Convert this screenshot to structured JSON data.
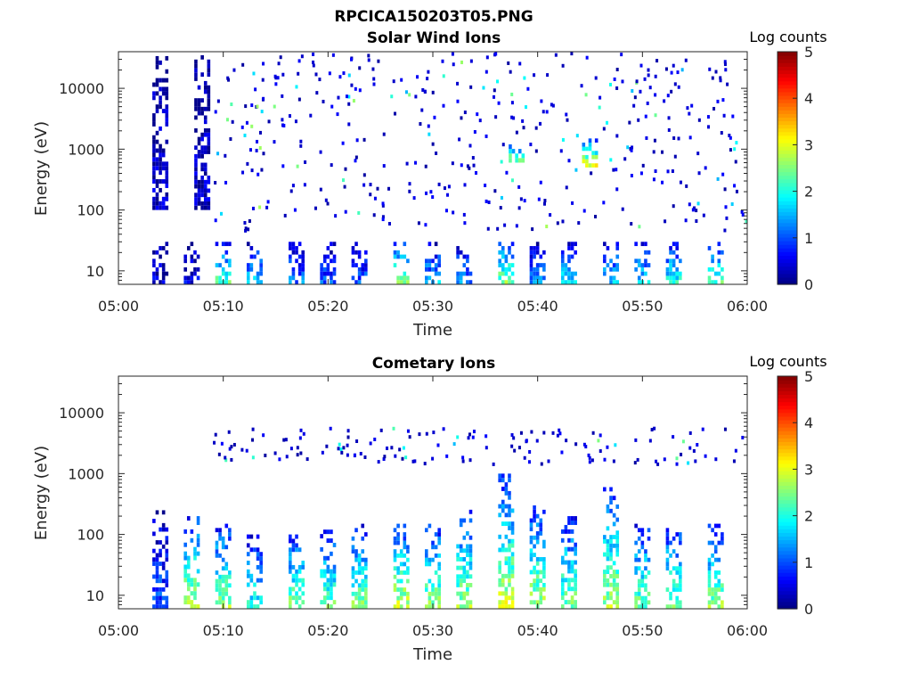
{
  "figure_title": "RPCICA150203T05.PNG",
  "chart_data": [
    {
      "type": "heatmap",
      "title": "Solar Wind Ions",
      "xlabel": "Time",
      "ylabel": "Energy (eV)",
      "x_ticks": [
        "05:00",
        "05:10",
        "05:20",
        "05:30",
        "05:40",
        "05:50",
        "06:00"
      ],
      "x_range": [
        "05:00",
        "06:00"
      ],
      "y_scale": "log",
      "y_ticks": [
        "10",
        "100",
        "1000",
        "10000"
      ],
      "y_range": [
        6,
        40000
      ],
      "colorbar": {
        "label": "Log counts",
        "ticks": [
          "0",
          "1",
          "2",
          "3",
          "4",
          "5"
        ],
        "range": [
          0,
          5
        ],
        "colormap": "jet"
      },
      "grid": false,
      "bursts": [
        {
          "t": "05:04",
          "emin": 6,
          "emax": 30,
          "level": 0.4
        },
        {
          "t": "05:04",
          "emin": 100,
          "emax": 40000,
          "level": 0.3
        },
        {
          "t": "05:07",
          "emin": 6,
          "emax": 30,
          "level": 0.6
        },
        {
          "t": "05:08",
          "emin": 100,
          "emax": 35000,
          "level": 0.3
        },
        {
          "t": "05:10",
          "emin": 6,
          "emax": 30,
          "level": 2.3
        },
        {
          "t": "05:13",
          "emin": 6,
          "emax": 30,
          "level": 1.6
        },
        {
          "t": "05:17",
          "emin": 6,
          "emax": 30,
          "level": 1.2
        },
        {
          "t": "05:20",
          "emin": 6,
          "emax": 30,
          "level": 1.0
        },
        {
          "t": "05:23",
          "emin": 6,
          "emax": 30,
          "level": 1.0
        },
        {
          "t": "05:27",
          "emin": 6,
          "emax": 30,
          "level": 2.4
        },
        {
          "t": "05:30",
          "emin": 6,
          "emax": 30,
          "level": 1.5
        },
        {
          "t": "05:33",
          "emin": 6,
          "emax": 30,
          "level": 1.3
        },
        {
          "t": "05:37",
          "emin": 6,
          "emax": 30,
          "level": 2.5
        },
        {
          "t": "05:40",
          "emin": 6,
          "emax": 30,
          "level": 1.3
        },
        {
          "t": "05:43",
          "emin": 6,
          "emax": 30,
          "level": 1.8
        },
        {
          "t": "05:47",
          "emin": 6,
          "emax": 30,
          "level": 1.6
        },
        {
          "t": "05:50",
          "emin": 6,
          "emax": 30,
          "level": 1.7
        },
        {
          "t": "05:53",
          "emin": 6,
          "emax": 30,
          "level": 2.0
        },
        {
          "t": "05:57",
          "emin": 6,
          "emax": 30,
          "level": 2.2
        },
        {
          "t": "05:45",
          "emin": 500,
          "emax": 1500,
          "level": 3.0
        },
        {
          "t": "05:38",
          "emin": 600,
          "emax": 1200,
          "level": 2.5
        }
      ]
    },
    {
      "type": "heatmap",
      "title": "Cometary Ions",
      "xlabel": "Time",
      "ylabel": "Energy (eV)",
      "x_ticks": [
        "05:00",
        "05:10",
        "05:20",
        "05:30",
        "05:40",
        "05:50",
        "06:00"
      ],
      "x_range": [
        "05:00",
        "06:00"
      ],
      "y_scale": "log",
      "y_ticks": [
        "10",
        "100",
        "1000",
        "10000"
      ],
      "y_range": [
        6,
        40000
      ],
      "colorbar": {
        "label": "Log counts",
        "ticks": [
          "0",
          "1",
          "2",
          "3",
          "4",
          "5"
        ],
        "range": [
          0,
          5
        ],
        "colormap": "jet"
      },
      "grid": false,
      "bursts": [
        {
          "t": "05:04",
          "emin": 6,
          "emax": 250,
          "level": 1.0
        },
        {
          "t": "05:07",
          "emin": 6,
          "emax": 200,
          "level": 2.8
        },
        {
          "t": "05:10",
          "emin": 6,
          "emax": 150,
          "level": 2.6
        },
        {
          "t": "05:13",
          "emin": 6,
          "emax": 100,
          "level": 2.0
        },
        {
          "t": "05:17",
          "emin": 6,
          "emax": 100,
          "level": 2.5
        },
        {
          "t": "05:20",
          "emin": 6,
          "emax": 120,
          "level": 2.4
        },
        {
          "t": "05:23",
          "emin": 6,
          "emax": 150,
          "level": 2.5
        },
        {
          "t": "05:27",
          "emin": 6,
          "emax": 150,
          "level": 2.9
        },
        {
          "t": "05:30",
          "emin": 6,
          "emax": 150,
          "level": 2.6
        },
        {
          "t": "05:33",
          "emin": 6,
          "emax": 300,
          "level": 2.6
        },
        {
          "t": "05:37",
          "emin": 6,
          "emax": 1000,
          "level": 2.9
        },
        {
          "t": "05:40",
          "emin": 6,
          "emax": 300,
          "level": 2.7
        },
        {
          "t": "05:43",
          "emin": 6,
          "emax": 200,
          "level": 2.5
        },
        {
          "t": "05:47",
          "emin": 6,
          "emax": 600,
          "level": 2.7
        },
        {
          "t": "05:50",
          "emin": 6,
          "emax": 150,
          "level": 2.4
        },
        {
          "t": "05:53",
          "emin": 6,
          "emax": 150,
          "level": 2.5
        },
        {
          "t": "05:57",
          "emin": 6,
          "emax": 150,
          "level": 2.6
        }
      ]
    }
  ]
}
